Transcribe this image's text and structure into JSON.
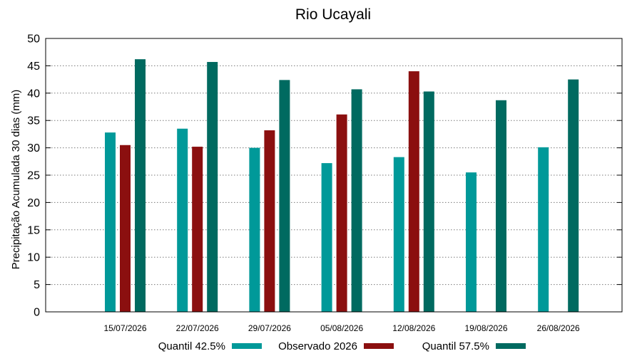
{
  "chart_data": {
    "type": "bar",
    "title": "Rio Ucayali",
    "xlabel": "",
    "ylabel": "Precipitação Acumulada 30 dias (mm)",
    "ylim": [
      0,
      50
    ],
    "yticks": [
      0,
      5,
      10,
      15,
      20,
      25,
      30,
      35,
      40,
      45,
      50
    ],
    "grid": true,
    "legend_position": "bottom",
    "categories": [
      "15/07/2026",
      "22/07/2026",
      "29/07/2026",
      "05/08/2026",
      "12/08/2026",
      "19/08/2026",
      "26/08/2026"
    ],
    "series": [
      {
        "name": "Quantil 42.5%",
        "color": "#009999",
        "values": [
          32.8,
          33.5,
          30.0,
          27.2,
          28.3,
          25.5,
          30.1
        ]
      },
      {
        "name": "Observado 2026",
        "color": "#8b0f0f",
        "values": [
          30.5,
          30.2,
          33.2,
          36.1,
          44.0,
          null,
          null
        ]
      },
      {
        "name": "Quantil 57.5%",
        "color": "#006a60",
        "values": [
          46.2,
          45.7,
          42.4,
          40.7,
          40.3,
          38.7,
          42.5
        ]
      }
    ]
  }
}
